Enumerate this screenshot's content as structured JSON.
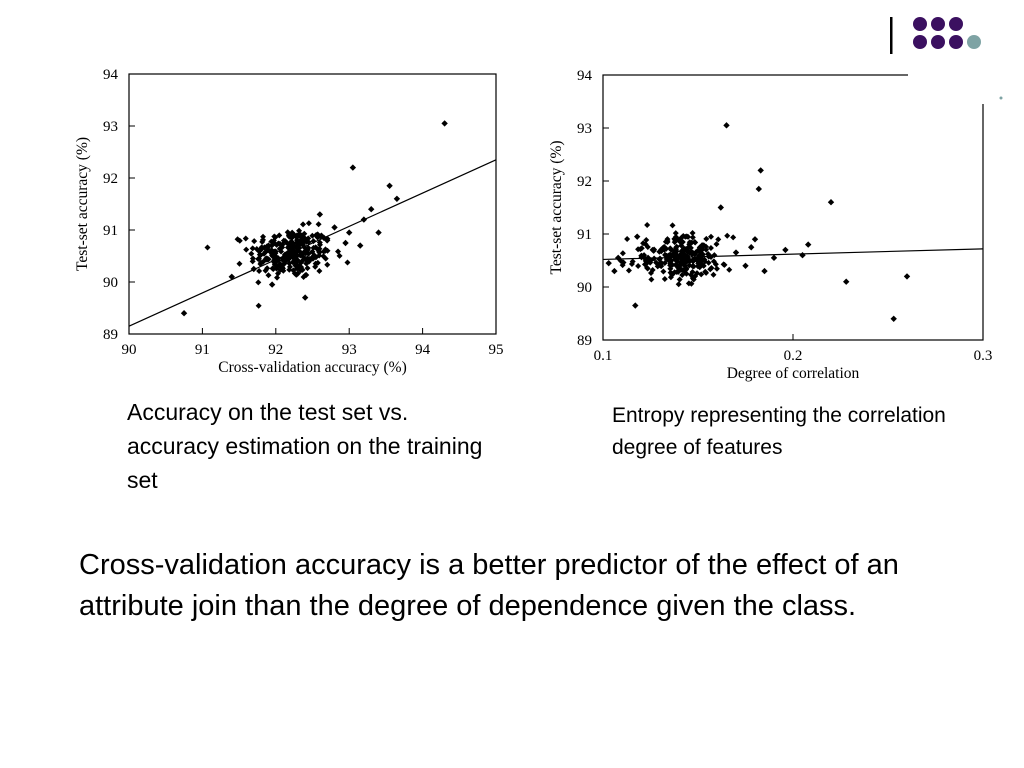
{
  "captions": {
    "left": "Accuracy on the test set vs. accuracy estimation on the training set",
    "right": "Entropy representing the correlation degree of features"
  },
  "main_text": "Cross-validation accuracy is a better predictor of the effect of an attribute join than the degree of dependence given the class.",
  "colors": {
    "dot_purple": "#3b1060",
    "dot_teal": "#7ea3a4",
    "dot_yellow": "#e6d23c",
    "rule": "#000000"
  },
  "chart_data": [
    {
      "type": "scatter",
      "title": "",
      "xlabel": "Cross-validation accuracy (%)",
      "ylabel": "Test-set accuracy (%)",
      "xlim": [
        90,
        95
      ],
      "ylim": [
        89,
        94
      ],
      "xticks": [
        "90",
        "91",
        "92",
        "93",
        "94",
        "95"
      ],
      "yticks": [
        "89",
        "90",
        "91",
        "92",
        "93",
        "94"
      ],
      "grid": false,
      "regression_line": [
        [
          90,
          89.15
        ],
        [
          95,
          92.35
        ]
      ],
      "cluster": {
        "center": [
          92.2,
          90.55
        ],
        "spread": [
          0.28,
          0.24
        ],
        "count": 260
      },
      "points": [
        [
          90.75,
          89.4
        ],
        [
          91.4,
          90.1
        ],
        [
          91.7,
          90.25
        ],
        [
          91.9,
          90.7
        ],
        [
          92.4,
          89.7
        ],
        [
          92.6,
          91.3
        ],
        [
          92.8,
          91.05
        ],
        [
          93.0,
          90.95
        ],
        [
          93.05,
          92.2
        ],
        [
          93.2,
          91.2
        ],
        [
          93.3,
          91.4
        ],
        [
          93.4,
          90.95
        ],
        [
          93.55,
          91.85
        ],
        [
          93.65,
          91.6
        ],
        [
          94.3,
          93.05
        ],
        [
          92.95,
          90.75
        ],
        [
          93.15,
          90.7
        ],
        [
          92.7,
          90.8
        ],
        [
          92.55,
          90.9
        ],
        [
          91.95,
          89.95
        ]
      ]
    },
    {
      "type": "scatter",
      "title": "",
      "xlabel": "Degree of correlation",
      "ylabel": "Test-set accuracy (%)",
      "xlim": [
        0.1,
        0.3
      ],
      "ylim": [
        89,
        94
      ],
      "xticks": [
        "0.1",
        "0.2",
        "0.3"
      ],
      "yticks": [
        "89",
        "90",
        "91",
        "92",
        "93",
        "94"
      ],
      "grid": false,
      "regression_line": [
        [
          0.1,
          90.52
        ],
        [
          0.3,
          90.72
        ]
      ],
      "cluster": {
        "center": [
          0.14,
          90.55
        ],
        "spread": [
          0.013,
          0.2
        ],
        "count": 260
      },
      "points": [
        [
          0.103,
          90.45
        ],
        [
          0.106,
          90.3
        ],
        [
          0.108,
          90.55
        ],
        [
          0.117,
          89.65
        ],
        [
          0.118,
          90.95
        ],
        [
          0.162,
          91.5
        ],
        [
          0.165,
          93.05
        ],
        [
          0.17,
          90.65
        ],
        [
          0.175,
          90.4
        ],
        [
          0.178,
          90.75
        ],
        [
          0.18,
          90.9
        ],
        [
          0.182,
          91.85
        ],
        [
          0.183,
          92.2
        ],
        [
          0.185,
          90.3
        ],
        [
          0.19,
          90.55
        ],
        [
          0.196,
          90.7
        ],
        [
          0.205,
          90.6
        ],
        [
          0.208,
          90.8
        ],
        [
          0.22,
          91.6
        ],
        [
          0.228,
          90.1
        ],
        [
          0.253,
          89.4
        ],
        [
          0.26,
          90.2
        ]
      ]
    }
  ]
}
